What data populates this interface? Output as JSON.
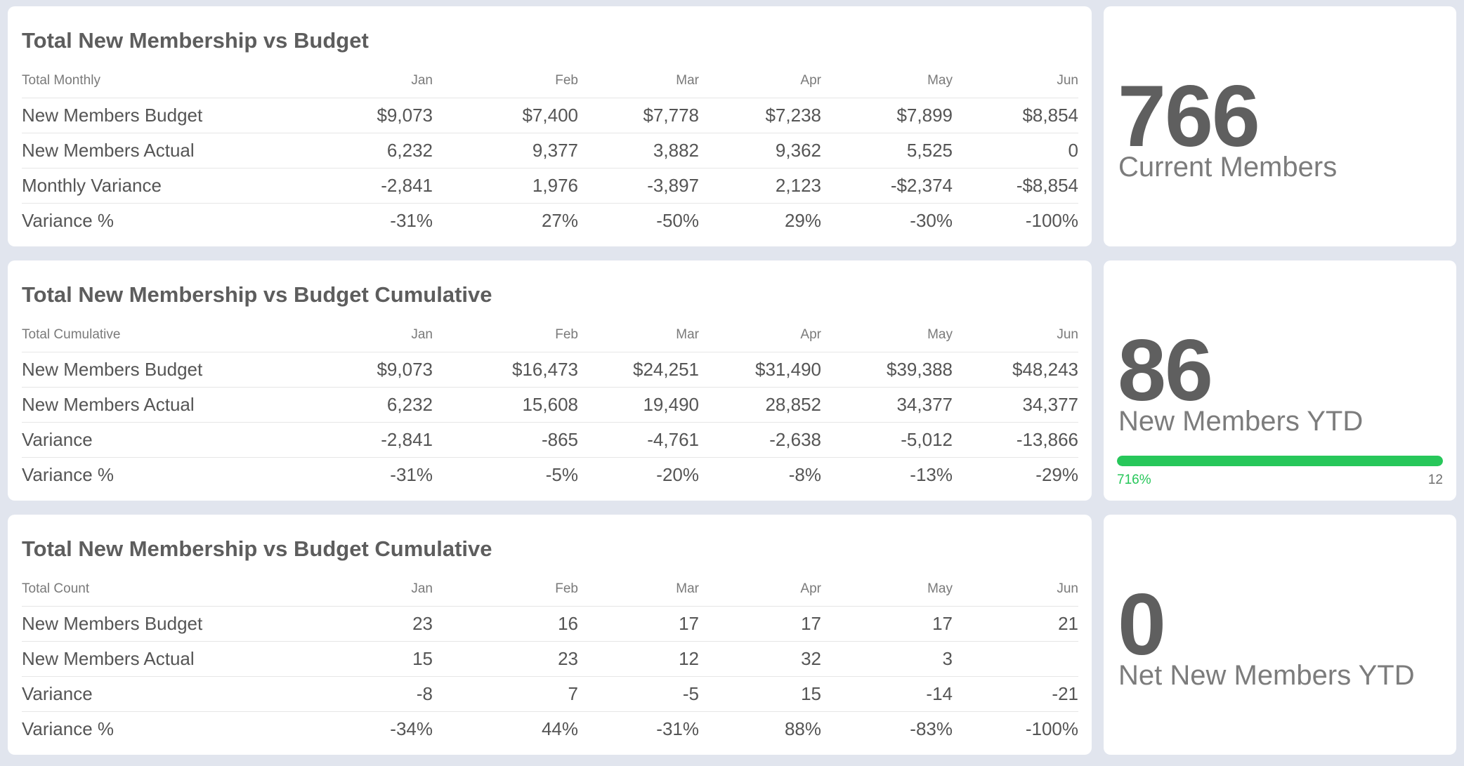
{
  "tables": [
    {
      "title": "Total New Membership vs Budget",
      "header": [
        "Total Monthly",
        "Jan",
        "Feb",
        "Mar",
        "Apr",
        "May",
        "Jun"
      ],
      "rows": [
        [
          "New Members Budget",
          "$9,073",
          "$7,400",
          "$7,778",
          "$7,238",
          "$7,899",
          "$8,854"
        ],
        [
          "New Members Actual",
          "6,232",
          "9,377",
          "3,882",
          "9,362",
          "5,525",
          "0"
        ],
        [
          "Monthly Variance",
          "-2,841",
          "1,976",
          "-3,897",
          "2,123",
          "-$2,374",
          "-$8,854"
        ],
        [
          "Variance %",
          "-31%",
          "27%",
          "-50%",
          "29%",
          "-30%",
          "-100%"
        ]
      ]
    },
    {
      "title": "Total New Membership vs Budget Cumulative",
      "header": [
        "Total Cumulative",
        "Jan",
        "Feb",
        "Mar",
        "Apr",
        "May",
        "Jun"
      ],
      "rows": [
        [
          "New Members Budget",
          "$9,073",
          "$16,473",
          "$24,251",
          "$31,490",
          "$39,388",
          "$48,243"
        ],
        [
          "New Members Actual",
          "6,232",
          "15,608",
          "19,490",
          "28,852",
          "34,377",
          "34,377"
        ],
        [
          "Variance",
          "-2,841",
          "-865",
          "-4,761",
          "-2,638",
          "-5,012",
          "-13,866"
        ],
        [
          "Variance %",
          "-31%",
          "-5%",
          "-20%",
          "-8%",
          "-13%",
          "-29%"
        ]
      ]
    },
    {
      "title": "Total New Membership vs Budget Cumulative",
      "header": [
        "Total Count",
        "Jan",
        "Feb",
        "Mar",
        "Apr",
        "May",
        "Jun"
      ],
      "rows": [
        [
          "New Members Budget",
          "23",
          "16",
          "17",
          "17",
          "17",
          "21"
        ],
        [
          "New Members Actual",
          "15",
          "23",
          "12",
          "32",
          "3",
          ""
        ],
        [
          "Variance",
          "-8",
          "7",
          "-5",
          "15",
          "-14",
          "-21"
        ],
        [
          "Variance %",
          "-34%",
          "44%",
          "-31%",
          "88%",
          "-83%",
          "-100%"
        ]
      ]
    }
  ],
  "kpis": [
    {
      "value": "766",
      "label": "Current Members"
    },
    {
      "value": "86",
      "label": "New Members YTD",
      "progress": {
        "percent_label": "716%",
        "target": "12",
        "fill_fraction": 1.0,
        "color": "#27c75a"
      }
    },
    {
      "value": "0",
      "label": "Net New Members YTD"
    }
  ],
  "colors": {
    "background": "#e1e5ee",
    "card": "#ffffff",
    "accent": "#27c75a"
  }
}
